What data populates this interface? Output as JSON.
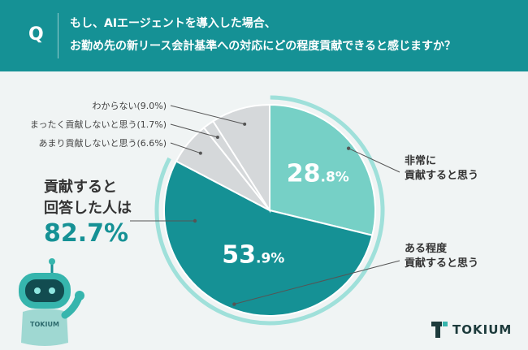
{
  "header": {
    "q_mark": "Q",
    "line1": "もし、AIエージェントを導入した場合、",
    "line2": "お勤め先の新リース会計基準への対応にどの程度貢献できると感じますか？"
  },
  "summary": {
    "line1": "貢献すると",
    "line2": "回答した人は",
    "value": "82.7%"
  },
  "brand": {
    "name": "TOKIUM"
  },
  "robot": {
    "badge": "TOKIUM"
  },
  "chart_data": {
    "type": "pie",
    "slices": [
      {
        "label_lines": [
          "非常に",
          "貢献すると思う"
        ],
        "value": 28.8,
        "int": "28",
        "dec": ".8%",
        "color": "#76d0c6"
      },
      {
        "label_lines": [
          "ある程度",
          "貢献すると思う"
        ],
        "value": 53.9,
        "int": "53",
        "dec": ".9%",
        "color": "#159195"
      },
      {
        "label": "あまり貢献しないと思う(6.6%)",
        "value": 6.6,
        "color": "#d5d8da"
      },
      {
        "label": "まったく貢献しないと思う(1.7%)",
        "value": 1.7,
        "color": "#d5d8da"
      },
      {
        "label": "わからない(9.0%)",
        "value": 9.0,
        "color": "#d5d8da"
      }
    ],
    "highlight_ring_color": "#9fe0da"
  }
}
